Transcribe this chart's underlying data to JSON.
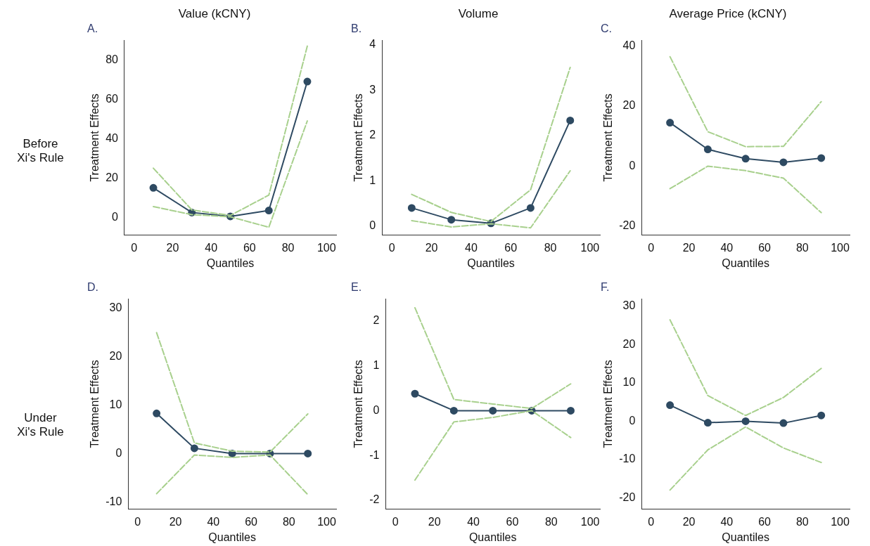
{
  "chart_data": [
    {
      "type": "line",
      "title": "Value (kCNY)",
      "subtitle": "A.",
      "annotations": [
        "Before\nXi's Rule"
      ],
      "xlabel": "Quantiles",
      "ylabel": "Treatment Effects",
      "x": [
        10,
        30,
        50,
        70,
        90
      ],
      "xlim": [
        -5,
        105
      ],
      "xticks": [
        0,
        20,
        40,
        60,
        80,
        100
      ],
      "ylim": [
        -9,
        90
      ],
      "yticks": [
        0,
        20,
        40,
        60,
        80
      ],
      "grid": false,
      "legend": false,
      "series": [
        {
          "color": "#a8d08d",
          "line_style": "dashed",
          "marker": "none",
          "values": [
            25,
            3.8,
            1,
            11.3,
            87
          ]
        },
        {
          "color": "#a8d08d",
          "line_style": "dashed",
          "marker": "none",
          "values": [
            5.5,
            1.4,
            0.3,
            -5,
            49
          ]
        },
        {
          "color": "#2e4a62",
          "line_style": "solid",
          "marker": "circle",
          "values": [
            15,
            2.5,
            0.5,
            3.5,
            69
          ]
        }
      ]
    },
    {
      "type": "line",
      "title": "Volume",
      "subtitle": "B.",
      "xlabel": "Quantiles",
      "ylabel": "Treatment Effects",
      "x": [
        10,
        30,
        50,
        70,
        90
      ],
      "xlim": [
        -5,
        105
      ],
      "xticks": [
        0,
        20,
        40,
        60,
        80,
        100
      ],
      "ylim": [
        -0.2,
        4.1
      ],
      "yticks": [
        0,
        1,
        2,
        3,
        4
      ],
      "grid": false,
      "legend": false,
      "series": [
        {
          "color": "#a8d08d",
          "line_style": "dashed",
          "marker": "none",
          "values": [
            0.7,
            0.3,
            0.1,
            0.8,
            3.5
          ]
        },
        {
          "color": "#a8d08d",
          "line_style": "dashed",
          "marker": "none",
          "values": [
            0.12,
            -0.02,
            0.05,
            -0.04,
            1.22
          ]
        },
        {
          "color": "#2e4a62",
          "line_style": "solid",
          "marker": "circle",
          "values": [
            0.4,
            0.14,
            0.06,
            0.4,
            2.33
          ]
        }
      ]
    },
    {
      "type": "line",
      "title": "Average Price (kCNY)",
      "subtitle": "C.",
      "xlabel": "Quantiles",
      "ylabel": "Treatment Effects",
      "x": [
        10,
        30,
        50,
        70,
        90
      ],
      "xlim": [
        -5,
        105
      ],
      "xticks": [
        0,
        20,
        40,
        60,
        80,
        100
      ],
      "ylim": [
        -23,
        42
      ],
      "yticks": [
        -20,
        0,
        20,
        40
      ],
      "grid": false,
      "legend": false,
      "series": [
        {
          "color": "#a8d08d",
          "line_style": "dashed",
          "marker": "none",
          "values": [
            36.5,
            11.5,
            6.5,
            6.6,
            21.5
          ]
        },
        {
          "color": "#a8d08d",
          "line_style": "dashed",
          "marker": "none",
          "values": [
            -7.5,
            0,
            -1.5,
            -4,
            -15.5
          ]
        },
        {
          "color": "#2e4a62",
          "line_style": "solid",
          "marker": "circle",
          "values": [
            14.5,
            5.6,
            2.5,
            1.3,
            2.7
          ]
        }
      ]
    },
    {
      "type": "line",
      "title": "D.",
      "annotations": [
        "Under\nXi's Rule"
      ],
      "xlabel": "Quantiles",
      "ylabel": "Treatment Effects",
      "x": [
        10,
        30,
        50,
        70,
        90
      ],
      "xlim": [
        -5,
        105
      ],
      "xticks": [
        0,
        20,
        40,
        60,
        80,
        100
      ],
      "ylim": [
        -11.5,
        32
      ],
      "yticks": [
        -10,
        0,
        10,
        20,
        30
      ],
      "grid": false,
      "legend": false,
      "series": [
        {
          "color": "#a8d08d",
          "line_style": "dashed",
          "marker": "none",
          "values": [
            25,
            2.2,
            0.5,
            0.3,
            8.2
          ]
        },
        {
          "color": "#a8d08d",
          "line_style": "dashed",
          "marker": "none",
          "values": [
            -8.3,
            -0.3,
            -0.8,
            -0.3,
            -8.5
          ]
        },
        {
          "color": "#2e4a62",
          "line_style": "solid",
          "marker": "circle",
          "values": [
            8.3,
            1.1,
            0,
            0,
            0
          ]
        }
      ]
    },
    {
      "type": "line",
      "title": "E.",
      "xlabel": "Quantiles",
      "ylabel": "Treatment Effects",
      "x": [
        10,
        30,
        50,
        70,
        90
      ],
      "xlim": [
        -5,
        105
      ],
      "xticks": [
        0,
        20,
        40,
        60,
        80,
        100
      ],
      "ylim": [
        -2.2,
        2.5
      ],
      "yticks": [
        -2,
        -1,
        0,
        1,
        2
      ],
      "grid": false,
      "legend": false,
      "series": [
        {
          "color": "#a8d08d",
          "line_style": "dashed",
          "marker": "none",
          "values": [
            2.3,
            0.25,
            0.15,
            0.05,
            0.6
          ]
        },
        {
          "color": "#a8d08d",
          "line_style": "dashed",
          "marker": "none",
          "values": [
            -1.55,
            -0.25,
            -0.15,
            0,
            -0.6
          ]
        },
        {
          "color": "#2e4a62",
          "line_style": "solid",
          "marker": "circle",
          "values": [
            0.38,
            0,
            0,
            0,
            0
          ]
        }
      ]
    },
    {
      "type": "line",
      "title": "F.",
      "xlabel": "Quantiles",
      "ylabel": "Treatment Effects",
      "x": [
        10,
        30,
        50,
        70,
        90
      ],
      "xlim": [
        -5,
        105
      ],
      "xticks": [
        0,
        20,
        40,
        60,
        80,
        100
      ],
      "ylim": [
        -23,
        32
      ],
      "yticks": [
        -20,
        -10,
        0,
        10,
        20,
        30
      ],
      "grid": false,
      "legend": false,
      "series": [
        {
          "color": "#a8d08d",
          "line_style": "dashed",
          "marker": "none",
          "values": [
            26.5,
            6.7,
            1.5,
            6.2,
            13.8
          ]
        },
        {
          "color": "#a8d08d",
          "line_style": "dashed",
          "marker": "none",
          "values": [
            -18,
            -7.5,
            -1.5,
            -7,
            -10.8
          ]
        },
        {
          "color": "#2e4a62",
          "line_style": "solid",
          "marker": "circle",
          "values": [
            4.2,
            -0.4,
            0,
            -0.5,
            1.5
          ]
        }
      ]
    }
  ]
}
